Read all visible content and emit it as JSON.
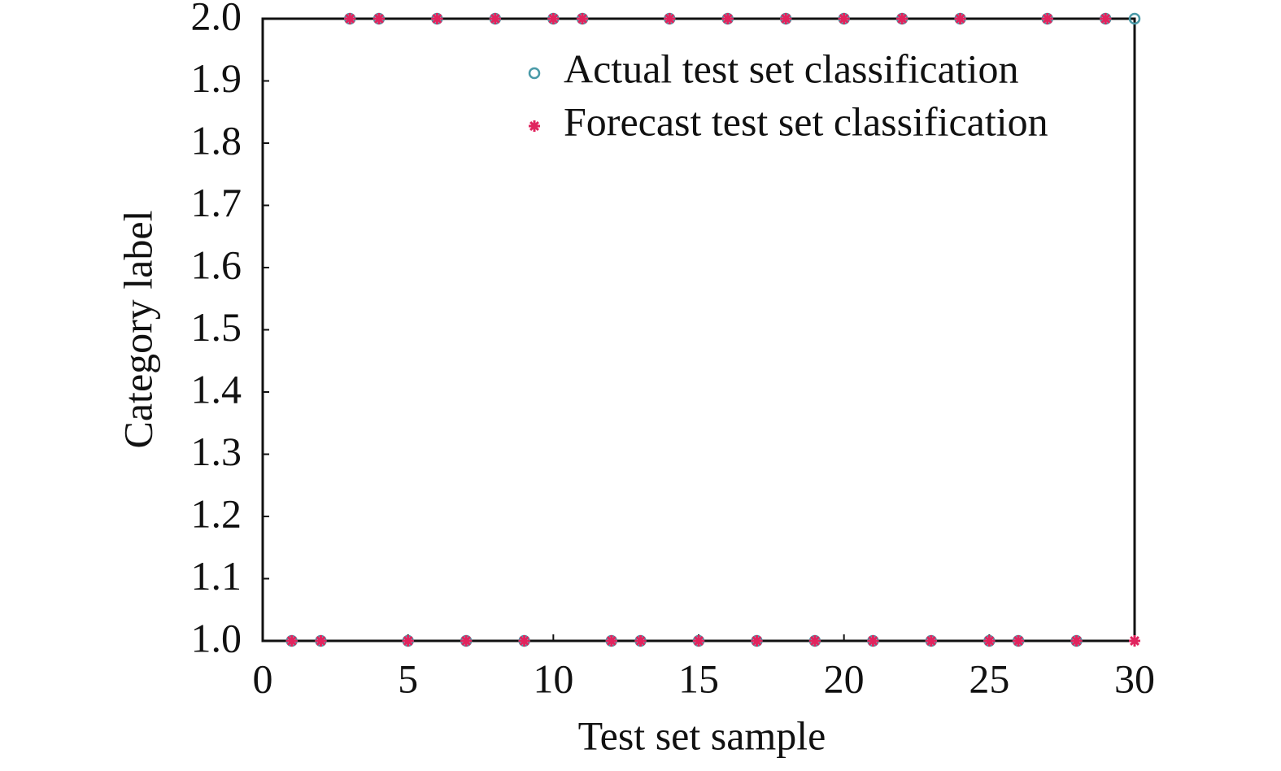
{
  "chart_data": {
    "type": "scatter",
    "xlabel": "Test set sample",
    "ylabel": "Category label",
    "x": [
      1,
      2,
      3,
      4,
      5,
      6,
      7,
      8,
      9,
      10,
      11,
      12,
      13,
      14,
      15,
      16,
      17,
      18,
      19,
      20,
      21,
      22,
      23,
      24,
      25,
      26,
      27,
      28,
      29,
      30
    ],
    "series": [
      {
        "name": "Actual test set classification",
        "color": "#4a9aa8",
        "marker": "circle",
        "values": [
          1,
          1,
          2,
          2,
          1,
          2,
          1,
          2,
          1,
          2,
          2,
          1,
          1,
          2,
          1,
          2,
          1,
          2,
          1,
          2,
          1,
          2,
          1,
          2,
          1,
          1,
          2,
          1,
          2,
          2
        ]
      },
      {
        "name": "Forecast test set classification",
        "color": "#e0245e",
        "marker": "asterisk",
        "values": [
          1,
          1,
          2,
          2,
          1,
          2,
          1,
          2,
          1,
          2,
          2,
          1,
          1,
          2,
          1,
          2,
          1,
          2,
          1,
          2,
          1,
          2,
          1,
          2,
          1,
          1,
          2,
          1,
          2,
          1
        ]
      }
    ],
    "xlim": [
      0,
      30
    ],
    "xticks": [
      0,
      5,
      10,
      15,
      20,
      25,
      30
    ],
    "ylim": [
      1,
      2
    ],
    "yticks": [
      {
        "value": 1,
        "label": "1.0"
      },
      1.1,
      1.2,
      1.3,
      1.4,
      1.5,
      1.6,
      1.7,
      1.8,
      1.9,
      {
        "value": 2,
        "label": "2.0"
      }
    ],
    "grid": false,
    "legend": "upper right"
  }
}
